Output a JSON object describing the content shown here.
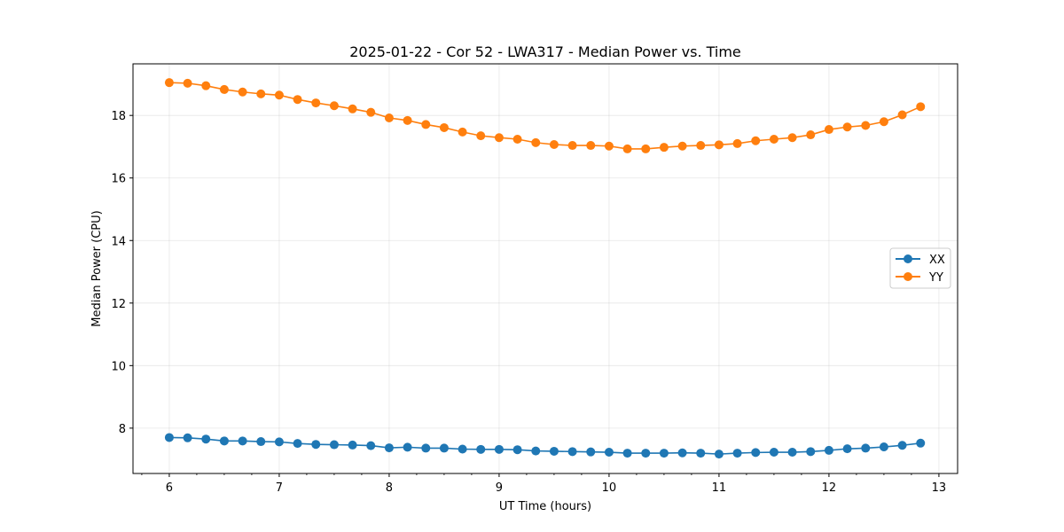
{
  "chart_data": {
    "type": "line",
    "title": "2025-01-22 - Cor 52 - LWA317 - Median Power vs. Time",
    "xlabel": "UT Time (hours)",
    "ylabel": "Median Power (CPU)",
    "xlim": [
      5.67,
      13.17
    ],
    "ylim": [
      6.55,
      19.65
    ],
    "x_ticks": [
      6,
      7,
      8,
      9,
      10,
      11,
      12,
      13
    ],
    "y_ticks": [
      8,
      10,
      12,
      14,
      16,
      18
    ],
    "grid": true,
    "legend_position": "right",
    "x": [
      6.0,
      6.1667,
      6.3333,
      6.5,
      6.6667,
      6.8333,
      7.0,
      7.1667,
      7.3333,
      7.5,
      7.6667,
      7.8333,
      8.0,
      8.1667,
      8.3333,
      8.5,
      8.6667,
      8.8333,
      9.0,
      9.1667,
      9.3333,
      9.5,
      9.6667,
      9.8333,
      10.0,
      10.1667,
      10.3333,
      10.5,
      10.6667,
      10.8333,
      11.0,
      11.1667,
      11.3333,
      11.5,
      11.6667,
      11.8333,
      12.0,
      12.1667,
      12.3333,
      12.5,
      12.6667,
      12.8333
    ],
    "series": [
      {
        "name": "XX",
        "color": "#1f77b4",
        "values": [
          7.7,
          7.69,
          7.65,
          7.59,
          7.59,
          7.57,
          7.56,
          7.51,
          7.48,
          7.47,
          7.46,
          7.44,
          7.37,
          7.39,
          7.36,
          7.36,
          7.33,
          7.32,
          7.32,
          7.31,
          7.27,
          7.26,
          7.25,
          7.24,
          7.23,
          7.2,
          7.2,
          7.2,
          7.21,
          7.2,
          7.17,
          7.2,
          7.22,
          7.23,
          7.23,
          7.25,
          7.29,
          7.34,
          7.36,
          7.4,
          7.45,
          7.52
        ]
      },
      {
        "name": "YY",
        "color": "#ff7f0e",
        "values": [
          19.05,
          19.03,
          18.95,
          18.83,
          18.75,
          18.69,
          18.65,
          18.51,
          18.4,
          18.31,
          18.21,
          18.1,
          17.92,
          17.84,
          17.71,
          17.61,
          17.47,
          17.35,
          17.29,
          17.24,
          17.13,
          17.07,
          17.04,
          17.04,
          17.02,
          16.93,
          16.93,
          16.98,
          17.02,
          17.04,
          17.06,
          17.1,
          17.19,
          17.24,
          17.29,
          17.38,
          17.55,
          17.63,
          17.68,
          17.8,
          18.02,
          18.28
        ]
      }
    ]
  }
}
